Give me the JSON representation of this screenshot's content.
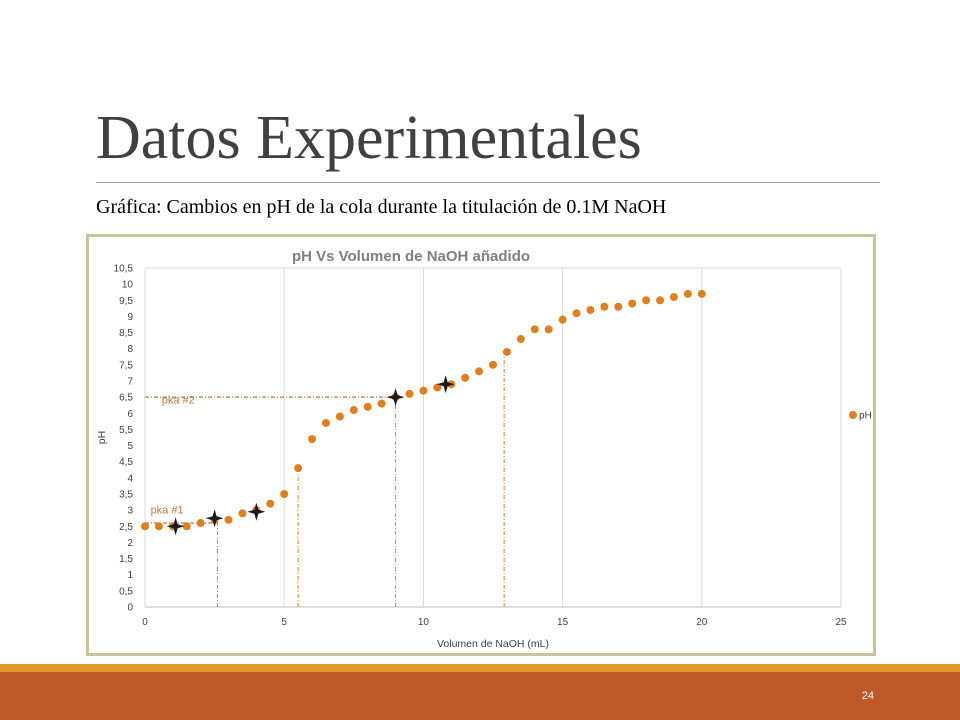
{
  "slide": {
    "title": "Datos Experimentales",
    "subtitle": "Gráfica: Cambios en pH de la cola durante la titulación de 0.1M NaOH",
    "page_number": "24"
  },
  "colors": {
    "point": "#e07f1c",
    "bar": "#bd5a28",
    "bar_accent": "#e0972b",
    "frame": "#c9c59a"
  },
  "chart_data": {
    "type": "scatter",
    "title": "pH Vs Volumen de NaOH añadido",
    "xlabel": "Volumen de NaOH (mL)",
    "ylabel": "pH",
    "xlim": [
      0,
      25
    ],
    "ylim": [
      0,
      10.5
    ],
    "x_ticks": [
      "0",
      "5",
      "10",
      "15",
      "20",
      "25"
    ],
    "y_ticks": [
      "0",
      "0,5",
      "1",
      "1,5",
      "2",
      "2,5",
      "3",
      "3,5",
      "4",
      "4,5",
      "5",
      "5,5",
      "6",
      "6,5",
      "7",
      "7,5",
      "8",
      "8,5",
      "9",
      "9,5",
      "10",
      "10,5"
    ],
    "grid": "vertical",
    "legend": "right",
    "series": [
      {
        "name": "pH",
        "x": [
          0,
          0.5,
          1,
          1.5,
          2,
          2.5,
          3,
          3.5,
          4,
          4.5,
          5,
          5.5,
          6,
          6.5,
          7,
          7.5,
          8,
          8.5,
          9,
          9.5,
          10,
          10.5,
          11,
          11.5,
          12,
          12.5,
          13,
          13.5,
          14,
          14.5,
          15,
          15.5,
          16,
          16.5,
          17,
          17.5,
          18,
          18.5,
          19,
          19.5,
          20
        ],
        "y": [
          2.5,
          2.5,
          2.5,
          2.5,
          2.6,
          2.7,
          2.7,
          2.9,
          3.0,
          3.2,
          3.5,
          4.3,
          5.2,
          5.7,
          5.9,
          6.1,
          6.2,
          6.3,
          6.5,
          6.6,
          6.7,
          6.8,
          6.9,
          7.1,
          7.3,
          7.5,
          7.9,
          8.3,
          8.6,
          8.6,
          8.9,
          9.1,
          9.2,
          9.3,
          9.3,
          9.4,
          9.5,
          9.5,
          9.6,
          9.7,
          9.7
        ]
      }
    ],
    "markers": [
      {
        "x": 1.1,
        "y": 2.5
      },
      {
        "x": 2.5,
        "y": 2.75
      },
      {
        "x": 4.0,
        "y": 2.95
      },
      {
        "x": 9.0,
        "y": 6.5
      },
      {
        "x": 10.8,
        "y": 6.9
      }
    ],
    "guides": {
      "vertical_x": [
        2.6,
        5.5,
        9.0,
        12.9
      ],
      "horizontal": [
        {
          "y": 2.6,
          "x_end": 2.6
        },
        {
          "y": 6.5,
          "x_end": 9.0
        }
      ]
    },
    "annotations": [
      {
        "text": "pka #1",
        "x": 0.2,
        "y": 2.9
      },
      {
        "text": "pka #2",
        "x": 0.6,
        "y": 6.3
      }
    ]
  }
}
